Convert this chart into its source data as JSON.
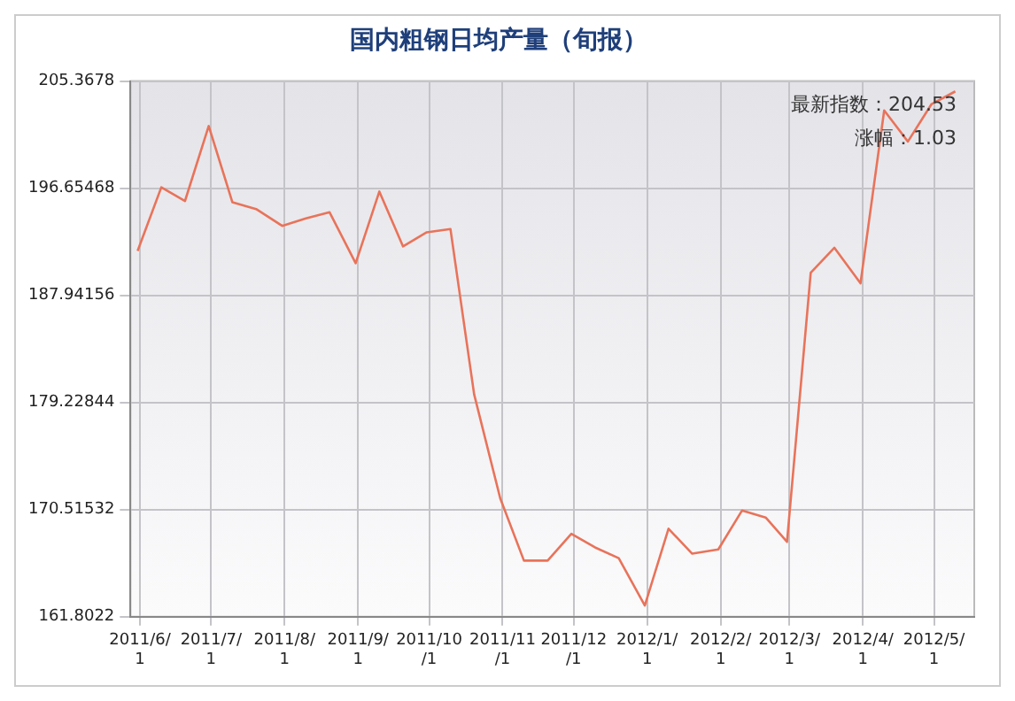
{
  "chart_data": {
    "type": "line",
    "title": "国内粗钢日均产量（旬报）",
    "x": [
      "2011-05-31",
      "2011-06-10",
      "2011-06-20",
      "2011-06-30",
      "2011-07-10",
      "2011-07-20",
      "2011-07-31",
      "2011-08-10",
      "2011-08-20",
      "2011-08-31",
      "2011-09-10",
      "2011-09-20",
      "2011-09-30",
      "2011-10-10",
      "2011-10-20",
      "2011-10-31",
      "2011-11-10",
      "2011-11-20",
      "2011-11-30",
      "2011-12-10",
      "2011-12-20",
      "2011-12-31",
      "2012-01-10",
      "2012-01-20",
      "2012-01-31",
      "2012-02-10",
      "2012-02-20",
      "2012-02-29",
      "2012-03-10",
      "2012-03-20",
      "2012-03-31",
      "2012-04-10",
      "2012-04-20",
      "2012-04-30",
      "2012-05-10"
    ],
    "series": [
      {
        "color": "#e8735a",
        "values": [
          191.55,
          196.73,
          195.62,
          201.71,
          195.51,
          194.96,
          193.59,
          194.2,
          194.7,
          190.55,
          196.38,
          191.92,
          193.07,
          193.33,
          179.88,
          171.43,
          166.37,
          166.37,
          168.55,
          167.44,
          166.57,
          162.72,
          168.96,
          166.93,
          167.28,
          170.44,
          169.87,
          167.89,
          189.78,
          191.81,
          188.92,
          202.98,
          200.45,
          203.5,
          204.53
        ]
      }
    ],
    "xlim": [
      "2011-05-28",
      "2012-05-18"
    ],
    "xticks": [
      {
        "value": "2011-06-01",
        "label": "2011/6/1"
      },
      {
        "value": "2011-07-01",
        "label": "2011/7/1"
      },
      {
        "value": "2011-08-01",
        "label": "2011/8/1"
      },
      {
        "value": "2011-09-01",
        "label": "2011/9/1"
      },
      {
        "value": "2011-10-01",
        "label": "2011/10/1"
      },
      {
        "value": "2011-11-01",
        "label": "2011/11/1"
      },
      {
        "value": "2011-12-01",
        "label": "2011/12/1"
      },
      {
        "value": "2012-01-01",
        "label": "2012/1/1"
      },
      {
        "value": "2012-02-01",
        "label": "2012/2/1"
      },
      {
        "value": "2012-03-01",
        "label": "2012/3/1"
      },
      {
        "value": "2012-04-01",
        "label": "2012/4/1"
      },
      {
        "value": "2012-05-01",
        "label": "2012/5/1"
      }
    ],
    "ylim": [
      161.8022,
      205.3678
    ],
    "yticks": [
      161.8022,
      170.51532,
      179.22844,
      187.94156,
      196.65468,
      205.3678
    ],
    "annotations": [
      "最新指数：204.53",
      "涨幅：1.03"
    ],
    "grid": true,
    "marker": "none",
    "line_style": "solid",
    "legend": false
  }
}
